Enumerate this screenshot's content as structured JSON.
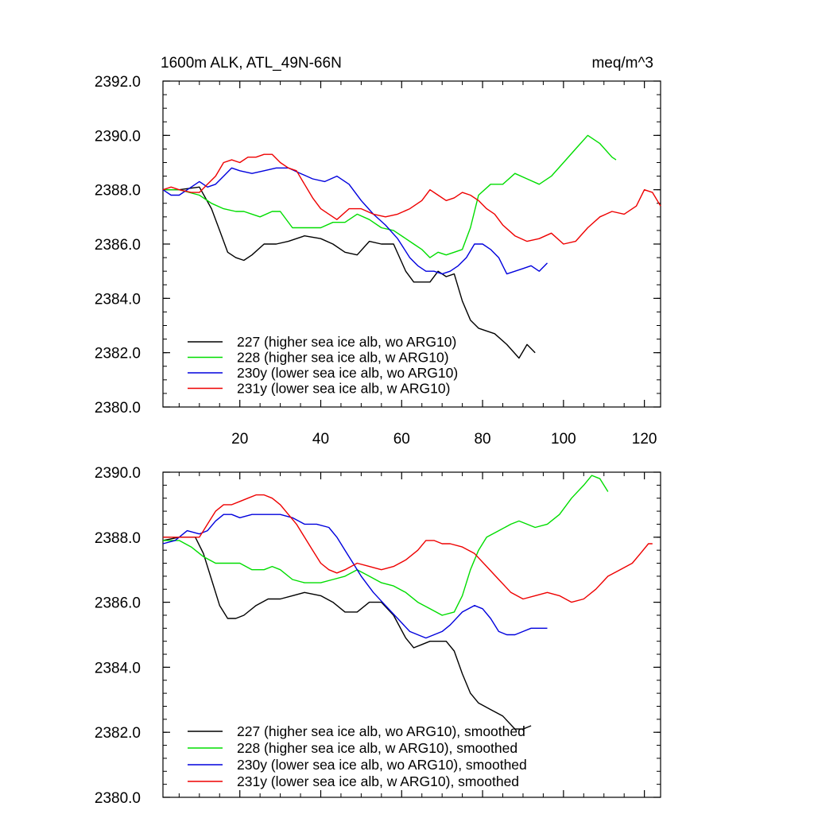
{
  "colors": {
    "s227": "#000000",
    "s228": "#00dd00",
    "s230": "#0000dd",
    "s231": "#ee0000"
  },
  "chart_data": [
    {
      "type": "line",
      "title": "1600m ALK, ATL_49N-66N",
      "units": "meq/m^3",
      "xlim": [
        1,
        124
      ],
      "ylim": [
        2380,
        2392
      ],
      "yticks": [
        "2380.0",
        "2382.0",
        "2384.0",
        "2386.0",
        "2388.0",
        "2390.0",
        "2392.0"
      ],
      "xticks": [
        "20",
        "40",
        "60",
        "80",
        "100",
        "120"
      ],
      "series": [
        {
          "name": "227 (higher sea ice alb, wo ARG10)",
          "color": "#000000",
          "x": [
            1,
            5,
            10,
            13,
            15,
            17,
            19,
            21,
            23,
            26,
            29,
            32,
            36,
            40,
            43,
            46,
            49,
            52,
            55,
            58,
            61,
            63,
            65,
            67,
            69,
            71,
            73,
            75,
            77,
            79,
            83,
            86,
            89,
            91,
            93
          ],
          "y": [
            2388.0,
            2388.0,
            2388.1,
            2387.3,
            2386.5,
            2385.7,
            2385.5,
            2385.4,
            2385.6,
            2386.0,
            2386.0,
            2386.1,
            2386.3,
            2386.2,
            2386.0,
            2385.7,
            2385.6,
            2386.1,
            2386.0,
            2386.0,
            2385.0,
            2384.6,
            2384.6,
            2384.6,
            2385.0,
            2384.8,
            2384.9,
            2383.9,
            2383.2,
            2382.9,
            2382.7,
            2382.3,
            2381.8,
            2382.3,
            2382.0
          ]
        },
        {
          "name": "228 (higher sea ice alb, w ARG10)",
          "color": "#00dd00",
          "x": [
            1,
            5,
            10,
            13,
            16,
            19,
            21,
            23,
            25,
            28,
            30,
            33,
            36,
            40,
            43,
            46,
            49,
            52,
            55,
            58,
            61,
            63,
            65,
            67,
            69,
            71,
            73,
            75,
            77,
            79,
            82,
            85,
            88,
            91,
            94,
            97,
            100,
            103,
            106,
            109,
            112,
            113
          ],
          "y": [
            2388.0,
            2388.0,
            2387.8,
            2387.5,
            2387.3,
            2387.2,
            2387.2,
            2387.1,
            2387.0,
            2387.2,
            2387.2,
            2386.6,
            2386.6,
            2386.6,
            2386.8,
            2386.8,
            2387.1,
            2386.9,
            2386.6,
            2386.5,
            2386.2,
            2386.0,
            2385.8,
            2385.5,
            2385.7,
            2385.6,
            2385.7,
            2385.8,
            2386.6,
            2387.8,
            2388.2,
            2388.2,
            2388.6,
            2388.4,
            2388.2,
            2388.5,
            2389.0,
            2389.5,
            2390.0,
            2389.7,
            2389.2,
            2389.1
          ]
        },
        {
          "name": "230y (lower sea ice alb, wo ARG10)",
          "color": "#0000dd",
          "x": [
            1,
            3,
            5,
            8,
            10,
            12,
            14,
            16,
            18,
            20,
            23,
            26,
            29,
            32,
            35,
            38,
            41,
            44,
            47,
            50,
            53,
            56,
            59,
            62,
            64,
            66,
            68,
            70,
            72,
            74,
            76,
            78,
            80,
            82,
            84,
            86,
            88,
            90,
            92,
            94,
            96
          ],
          "y": [
            2388.0,
            2387.8,
            2387.8,
            2388.1,
            2388.3,
            2388.1,
            2388.2,
            2388.5,
            2388.8,
            2388.7,
            2388.6,
            2388.7,
            2388.8,
            2388.8,
            2388.6,
            2388.4,
            2388.3,
            2388.5,
            2388.2,
            2387.6,
            2387.1,
            2386.7,
            2386.2,
            2385.5,
            2385.2,
            2385.0,
            2385.0,
            2384.9,
            2385.0,
            2385.2,
            2385.5,
            2386.0,
            2386.0,
            2385.8,
            2385.5,
            2384.9,
            2385.0,
            2385.1,
            2385.2,
            2385.0,
            2385.3
          ]
        },
        {
          "name": "231y (lower sea ice alb, w ARG10)",
          "color": "#ee0000",
          "x": [
            1,
            3,
            5,
            8,
            10,
            12,
            14,
            16,
            18,
            20,
            22,
            24,
            26,
            28,
            30,
            32,
            34,
            36,
            38,
            40,
            42,
            44,
            47,
            50,
            53,
            56,
            59,
            62,
            65,
            67,
            69,
            71,
            73,
            75,
            77,
            79,
            81,
            83,
            85,
            88,
            91,
            94,
            97,
            100,
            103,
            106,
            109,
            112,
            115,
            118,
            120,
            122,
            124
          ],
          "y": [
            2388.0,
            2388.1,
            2388.0,
            2387.9,
            2387.9,
            2388.2,
            2388.5,
            2389.0,
            2389.1,
            2389.0,
            2389.2,
            2389.2,
            2389.3,
            2389.3,
            2389.0,
            2388.8,
            2388.7,
            2388.2,
            2387.7,
            2387.3,
            2387.1,
            2386.9,
            2387.3,
            2387.3,
            2387.1,
            2387.0,
            2387.1,
            2387.3,
            2387.6,
            2388.0,
            2387.8,
            2387.6,
            2387.7,
            2387.9,
            2387.8,
            2387.6,
            2387.3,
            2387.1,
            2386.7,
            2386.3,
            2386.1,
            2386.2,
            2386.4,
            2386.0,
            2386.1,
            2386.6,
            2387.0,
            2387.2,
            2387.1,
            2387.4,
            2388.0,
            2387.9,
            2387.4
          ]
        }
      ]
    },
    {
      "type": "line",
      "xlim": [
        1,
        124
      ],
      "ylim": [
        2380,
        2390
      ],
      "yticks": [
        "2380.0",
        "2382.0",
        "2384.0",
        "2386.0",
        "2388.0",
        "2390.0"
      ],
      "series": [
        {
          "name": "227 (higher sea ice alb, wo ARG10), smoothed",
          "color": "#000000",
          "x": [
            1,
            5,
            9,
            11,
            13,
            15,
            17,
            19,
            21,
            24,
            27,
            30,
            33,
            36,
            40,
            43,
            46,
            49,
            52,
            55,
            58,
            61,
            63,
            65,
            67,
            69,
            71,
            73,
            75,
            77,
            79,
            82,
            85,
            88,
            90,
            92
          ],
          "y": [
            2387.9,
            2388.0,
            2388.0,
            2387.5,
            2386.7,
            2385.9,
            2385.5,
            2385.5,
            2385.6,
            2385.9,
            2386.1,
            2386.1,
            2386.2,
            2386.3,
            2386.2,
            2386.0,
            2385.7,
            2385.7,
            2386.0,
            2386.0,
            2385.6,
            2384.9,
            2384.6,
            2384.7,
            2384.8,
            2384.8,
            2384.8,
            2384.5,
            2383.8,
            2383.2,
            2382.9,
            2382.7,
            2382.5,
            2382.1,
            2382.1,
            2382.2
          ]
        },
        {
          "name": "228 (higher sea ice alb, w ARG10), smoothed",
          "color": "#00dd00",
          "x": [
            1,
            5,
            8,
            11,
            14,
            17,
            20,
            23,
            26,
            28,
            30,
            33,
            36,
            40,
            43,
            46,
            49,
            52,
            55,
            58,
            61,
            64,
            67,
            70,
            73,
            75,
            77,
            79,
            81,
            84,
            87,
            89,
            91,
            93,
            96,
            99,
            102,
            105,
            107,
            109,
            111
          ],
          "y": [
            2387.9,
            2387.9,
            2387.7,
            2387.4,
            2387.2,
            2387.2,
            2387.2,
            2387.0,
            2387.0,
            2387.1,
            2387.0,
            2386.7,
            2386.6,
            2386.6,
            2386.7,
            2386.8,
            2387.0,
            2386.8,
            2386.6,
            2386.5,
            2386.3,
            2386.0,
            2385.8,
            2385.6,
            2385.7,
            2386.2,
            2387.0,
            2387.6,
            2388.0,
            2388.2,
            2388.4,
            2388.5,
            2388.4,
            2388.3,
            2388.4,
            2388.7,
            2389.2,
            2389.6,
            2389.9,
            2389.8,
            2389.4
          ]
        },
        {
          "name": "230y (lower sea ice alb, wo ARG10), smoothed",
          "color": "#0000dd",
          "x": [
            1,
            4,
            7,
            10,
            12,
            14,
            16,
            18,
            20,
            23,
            26,
            30,
            33,
            36,
            39,
            42,
            44,
            46,
            48,
            50,
            53,
            56,
            59,
            62,
            64,
            66,
            68,
            70,
            72,
            75,
            78,
            80,
            82,
            84,
            86,
            88,
            90,
            92,
            94,
            96
          ],
          "y": [
            2387.8,
            2387.9,
            2388.2,
            2388.1,
            2388.2,
            2388.5,
            2388.7,
            2388.7,
            2388.6,
            2388.7,
            2388.7,
            2388.7,
            2388.6,
            2388.4,
            2388.4,
            2388.3,
            2388.0,
            2387.6,
            2387.2,
            2386.8,
            2386.3,
            2385.9,
            2385.5,
            2385.1,
            2385.0,
            2384.9,
            2385.0,
            2385.1,
            2385.3,
            2385.7,
            2385.9,
            2385.8,
            2385.5,
            2385.1,
            2385.0,
            2385.0,
            2385.1,
            2385.2,
            2385.2,
            2385.2
          ]
        },
        {
          "name": "231y (lower sea ice alb, w ARG10), smoothed",
          "color": "#ee0000",
          "x": [
            1,
            4,
            7,
            10,
            12,
            14,
            16,
            18,
            20,
            22,
            24,
            26,
            28,
            30,
            32,
            34,
            36,
            38,
            40,
            42,
            44,
            46,
            49,
            52,
            55,
            58,
            61,
            64,
            66,
            68,
            70,
            72,
            75,
            78,
            81,
            84,
            87,
            90,
            93,
            96,
            99,
            102,
            105,
            108,
            111,
            114,
            117,
            119,
            121,
            122
          ],
          "y": [
            2388.0,
            2388.0,
            2388.0,
            2388.0,
            2388.4,
            2388.8,
            2389.0,
            2389.0,
            2389.1,
            2389.2,
            2389.3,
            2389.3,
            2389.2,
            2389.0,
            2388.7,
            2388.4,
            2388.0,
            2387.6,
            2387.2,
            2387.0,
            2386.9,
            2387.0,
            2387.2,
            2387.1,
            2387.0,
            2387.1,
            2387.3,
            2387.6,
            2387.9,
            2387.9,
            2387.8,
            2387.8,
            2387.7,
            2387.5,
            2387.1,
            2386.7,
            2386.3,
            2386.1,
            2386.2,
            2386.3,
            2386.2,
            2386.0,
            2386.1,
            2386.4,
            2386.8,
            2387.0,
            2387.2,
            2387.5,
            2387.8,
            2387.8
          ]
        }
      ]
    }
  ]
}
